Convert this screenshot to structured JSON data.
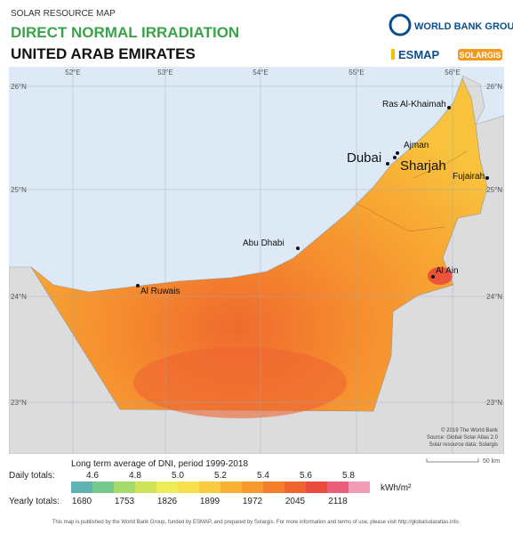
{
  "header": {
    "subtitle": "SOLAR RESOURCE MAP",
    "title": "DIRECT NORMAL IRRADIATION",
    "country": "UNITED ARAB EMIRATES"
  },
  "logos": {
    "world_bank": "WORLD BANK GROUP",
    "esmap": "ESMAP",
    "solargis": "SOLARGIS"
  },
  "map": {
    "longitudes": [
      "52°E",
      "53°E",
      "54°E",
      "55°E",
      "56°E"
    ],
    "latitudes": [
      "26°N",
      "25°N",
      "24°N",
      "23°N"
    ],
    "cities": [
      "Ras Al-Khaimah",
      "Ajman",
      "Dubai",
      "Sharjah",
      "Fujairah",
      "Abu Dhabi",
      "Al Ain",
      "Al Ruwais"
    ],
    "credits": [
      "© 2019 The World Bank",
      "Source: Global Solar Atlas 2.0",
      "Solar resource data: Solargis"
    ],
    "scale": "50 km"
  },
  "legend": {
    "title": "Long term average of DNI, period 1999-2018",
    "daily_label": "Daily totals:",
    "daily": [
      "4.6",
      "4.8",
      "5.0",
      "5.2",
      "5.4",
      "5.6",
      "5.8"
    ],
    "yearly_label": "Yearly totals:",
    "yearly": [
      "1680",
      "1753",
      "1826",
      "1899",
      "1972",
      "2045",
      "2118"
    ],
    "unit": "kWh/m²"
  },
  "footer": "This map is published by the World Bank Group, funded by ESMAP, and prepared by Solargis. For more information and terms of use, please visit http://globalsolaratlas.info."
}
